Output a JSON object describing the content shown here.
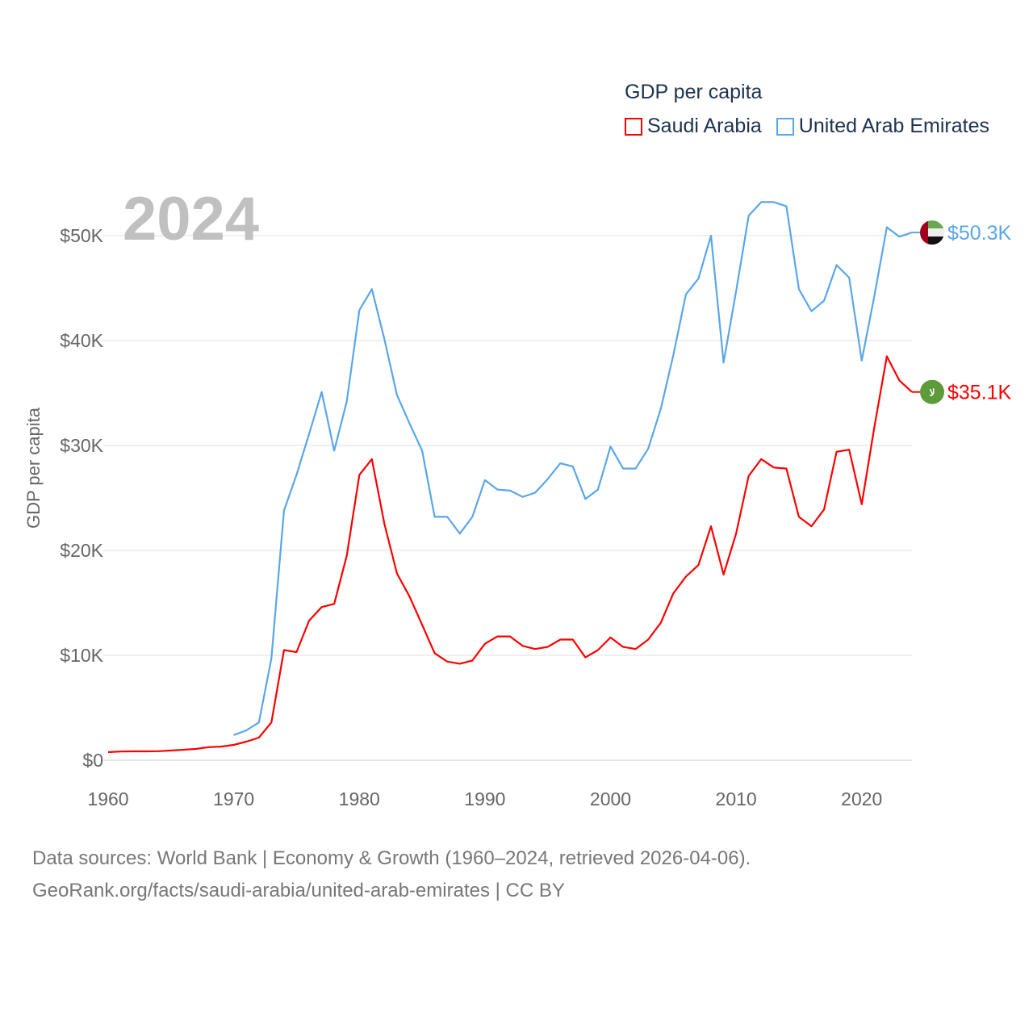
{
  "legend": {
    "title": "GDP per capita"
  },
  "year_label": "2024",
  "source": {
    "line1": "Data sources: World Bank | Economy & Growth (1960–2024, retrieved 2026-04-06).",
    "line2": "GeoRank.org/facts/saudi-arabia/united-arab-emirates | CC BY"
  },
  "chart_data": {
    "type": "line",
    "title": "GDP per capita",
    "xlabel": "",
    "ylabel": "GDP per capita",
    "xlim": [
      1960,
      2024
    ],
    "ylim": [
      0,
      55000
    ],
    "x_ticks": [
      1960,
      1970,
      1980,
      1990,
      2000,
      2010,
      2020
    ],
    "y_ticks": [
      0,
      10000,
      20000,
      30000,
      40000,
      50000
    ],
    "y_tick_labels": [
      "$0",
      "$10K",
      "$20K",
      "$30K",
      "$40K",
      "$50K"
    ],
    "grid": true,
    "legend_position": "top-right",
    "series": [
      {
        "name": "Saudi Arabia",
        "color": "#ff0000",
        "flag": "saudi-arabia-flag",
        "end_label": "$35.1K",
        "start_year": 1960,
        "values": [
          770,
          830,
          850,
          850,
          860,
          920,
          1000,
          1080,
          1250,
          1300,
          1460,
          1770,
          2150,
          3600,
          10500,
          10300,
          13300,
          14600,
          14900,
          19500,
          27200,
          28700,
          22500,
          17800,
          15600,
          12900,
          10200,
          9400,
          9200,
          9500,
          11100,
          11800,
          11800,
          10900,
          10600,
          10800,
          11500,
          11500,
          9800,
          10500,
          11700,
          10800,
          10600,
          11500,
          13100,
          15900,
          17500,
          18600,
          22300,
          17700,
          21600,
          27100,
          28700,
          27900,
          27800,
          23200,
          22300,
          23900,
          29400,
          29600,
          24400,
          31700,
          38500,
          36200,
          35100
        ]
      },
      {
        "name": "United Arab Emirates",
        "color": "#5aa6ea",
        "flag": "uae-flag",
        "end_label": "$50.3K",
        "start_year": 1970,
        "values": [
          2400,
          2850,
          3600,
          9700,
          23800,
          27200,
          31100,
          35100,
          29500,
          34200,
          42900,
          44900,
          40100,
          34800,
          32100,
          29500,
          23200,
          23200,
          21600,
          23200,
          26700,
          25800,
          25700,
          25100,
          25500,
          26800,
          28300,
          28000,
          24900,
          25800,
          29900,
          27800,
          27800,
          29700,
          33500,
          38600,
          44400,
          45900,
          50000,
          37900,
          44700,
          51900,
          53200,
          53200,
          52800,
          44900,
          42800,
          43800,
          47200,
          46000,
          38100,
          44200,
          50800,
          49900,
          50300
        ]
      }
    ]
  }
}
